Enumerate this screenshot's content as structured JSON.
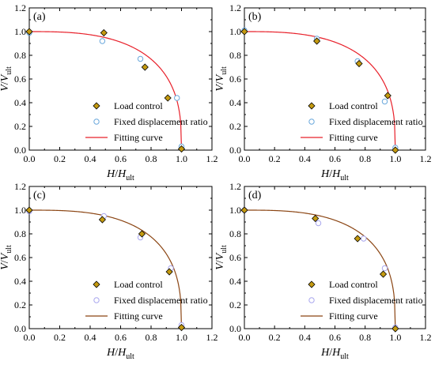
{
  "chart_data": [
    {
      "type": "scatter",
      "panel_label": "(a)",
      "xlabel": {
        "base": "H",
        "slash": "/",
        "base2": "H",
        "sub": "ult"
      },
      "ylabel": {
        "base": "V",
        "slash": "/",
        "base2": "V",
        "sub": "ult"
      },
      "xlim": [
        0,
        1.2
      ],
      "ylim": [
        0,
        1.2
      ],
      "xticks": [
        "0.0",
        "0.2",
        "0.4",
        "0.6",
        "0.8",
        "1.0",
        "1.2"
      ],
      "yticks": [
        "0.0",
        "0.2",
        "0.4",
        "0.6",
        "0.8",
        "1.0",
        "1.2"
      ],
      "curve_color": "#e8202a",
      "series": [
        {
          "name": "Load control",
          "marker": "diamond",
          "color": "#c49a10",
          "points": [
            [
              0.0,
              1.0
            ],
            [
              0.49,
              0.99
            ],
            [
              0.76,
              0.7
            ],
            [
              0.91,
              0.44
            ],
            [
              1.0,
              0.01
            ]
          ]
        },
        {
          "name": "Fixed displacement ratio",
          "marker": "circle",
          "color": "#6aa8dc",
          "points": [
            [
              0.0,
              0.99
            ],
            [
              0.48,
              0.92
            ],
            [
              0.73,
              0.77
            ],
            [
              0.97,
              0.44
            ],
            [
              1.0,
              0.03
            ]
          ]
        },
        {
          "name": "Fitting curve",
          "marker": "line",
          "exponent": 2.85
        }
      ]
    },
    {
      "type": "scatter",
      "panel_label": "(b)",
      "xlabel": {
        "base": "H",
        "slash": "/",
        "base2": "H",
        "sub": "ult"
      },
      "ylabel": {
        "base": "V",
        "slash": "/",
        "base2": "V",
        "sub": "ult"
      },
      "xlim": [
        0,
        1.2
      ],
      "ylim": [
        0,
        1.2
      ],
      "xticks": [
        "0.0",
        "0.2",
        "0.4",
        "0.6",
        "0.8",
        "1.0",
        "1.2"
      ],
      "yticks": [
        "0.0",
        "0.2",
        "0.4",
        "0.6",
        "0.8",
        "1.0",
        "1.2"
      ],
      "curve_color": "#e8202a",
      "series": [
        {
          "name": "Load control",
          "marker": "diamond",
          "color": "#c49a10",
          "points": [
            [
              0.0,
              1.0
            ],
            [
              0.48,
              0.92
            ],
            [
              0.76,
              0.73
            ],
            [
              0.95,
              0.46
            ],
            [
              1.0,
              0.0
            ]
          ]
        },
        {
          "name": "Fixed displacement ratio",
          "marker": "circle",
          "color": "#6aa8dc",
          "points": [
            [
              0.0,
              1.01
            ],
            [
              0.48,
              0.94
            ],
            [
              0.75,
              0.75
            ],
            [
              0.93,
              0.41
            ],
            [
              1.0,
              0.02
            ]
          ]
        },
        {
          "name": "Fitting curve",
          "marker": "line",
          "exponent": 2.85
        }
      ]
    },
    {
      "type": "scatter",
      "panel_label": "(c)",
      "xlabel": {
        "base": "H",
        "slash": "/",
        "base2": "H",
        "sub": "ult"
      },
      "ylabel": {
        "base": "V",
        "slash": "/",
        "base2": "V",
        "sub": "ult"
      },
      "xlim": [
        0,
        1.2
      ],
      "ylim": [
        0,
        1.2
      ],
      "xticks": [
        "0.0",
        "0.2",
        "0.4",
        "0.6",
        "0.8",
        "1.0",
        "1.2"
      ],
      "yticks": [
        "0.0",
        "0.2",
        "0.4",
        "0.6",
        "0.8",
        "1.0",
        "1.2"
      ],
      "curve_color": "#8b4513",
      "series": [
        {
          "name": "Load control",
          "marker": "diamond",
          "color": "#c49a10",
          "points": [
            [
              0.0,
              1.0
            ],
            [
              0.48,
              0.92
            ],
            [
              0.74,
              0.8
            ],
            [
              0.92,
              0.48
            ],
            [
              1.0,
              0.01
            ]
          ]
        },
        {
          "name": "Fixed displacement ratio",
          "marker": "circle",
          "color": "#a9a7ee",
          "points": [
            [
              0.0,
              0.99
            ],
            [
              0.49,
              0.95
            ],
            [
              0.73,
              0.77
            ],
            [
              0.93,
              0.51
            ],
            [
              1.0,
              0.03
            ]
          ]
        },
        {
          "name": "Fitting curve",
          "marker": "line",
          "exponent": 2.9
        }
      ]
    },
    {
      "type": "scatter",
      "panel_label": "(d)",
      "xlabel": {
        "base": "H",
        "slash": "/",
        "base2": "H",
        "sub": "ult"
      },
      "ylabel": {
        "base": "V",
        "slash": "/",
        "base2": "V",
        "sub": "ult"
      },
      "xlim": [
        0,
        1.2
      ],
      "ylim": [
        0,
        1.2
      ],
      "xticks": [
        "0.0",
        "0.2",
        "0.4",
        "0.6",
        "0.8",
        "1.0",
        "1.2"
      ],
      "yticks": [
        "0.0",
        "0.2",
        "0.4",
        "0.6",
        "0.8",
        "1.0",
        "1.2"
      ],
      "curve_color": "#8b4513",
      "series": [
        {
          "name": "Load control",
          "marker": "diamond",
          "color": "#c49a10",
          "points": [
            [
              0.0,
              1.0
            ],
            [
              0.47,
              0.93
            ],
            [
              0.75,
              0.76
            ],
            [
              0.92,
              0.46
            ],
            [
              1.0,
              0.0
            ]
          ]
        },
        {
          "name": "Fixed displacement ratio",
          "marker": "circle",
          "color": "#a9a7ee",
          "points": [
            [
              0.0,
              1.0
            ],
            [
              0.49,
              0.89
            ],
            [
              0.79,
              0.76
            ],
            [
              0.93,
              0.51
            ],
            [
              1.0,
              0.01
            ]
          ]
        },
        {
          "name": "Fitting curve",
          "marker": "line",
          "exponent": 2.9
        }
      ]
    }
  ]
}
